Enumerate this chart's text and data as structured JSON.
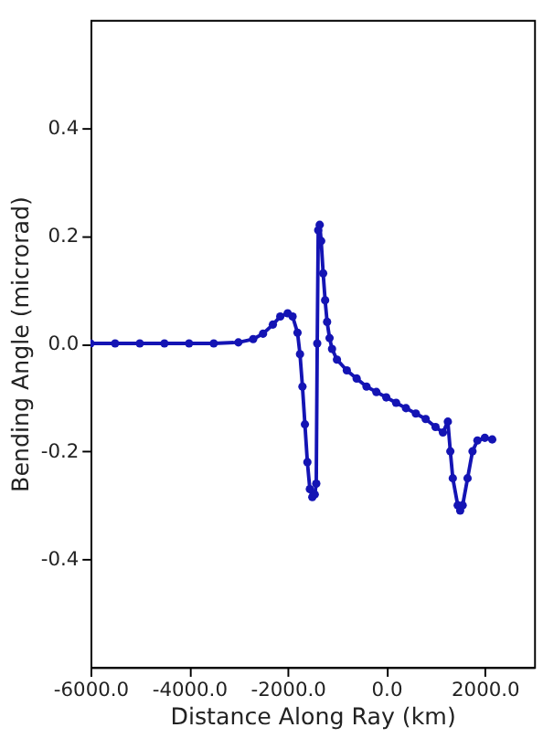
{
  "chart_data": {
    "type": "line",
    "xlabel": "Distance Along Ray (km)",
    "ylabel": "Bending Angle (microrad)",
    "xlim": [
      -6000,
      3000
    ],
    "ylim": [
      -0.6,
      0.6
    ],
    "xticks": [
      {
        "value": -6000,
        "label": "-6000.0"
      },
      {
        "value": -4000,
        "label": "-4000.0"
      },
      {
        "value": -2000,
        "label": "-2000.0"
      },
      {
        "value": 0,
        "label": "0.0"
      },
      {
        "value": 2000,
        "label": "2000.0"
      }
    ],
    "yticks": [
      {
        "value": -0.4,
        "label": "-0.4"
      },
      {
        "value": -0.2,
        "label": "-0.2"
      },
      {
        "value": 0,
        "label": "0.0"
      },
      {
        "value": 0.2,
        "label": "0.2"
      },
      {
        "value": 0.4,
        "label": "0.4"
      }
    ],
    "grid": false,
    "marker": "circle",
    "line_style": "solid",
    "series": [
      {
        "color": "#1414b4",
        "x": [
          -6000,
          -5500,
          -5000,
          -4500,
          -4000,
          -3500,
          -3000,
          -2700,
          -2500,
          -2300,
          -2150,
          -2000,
          -1900,
          -1800,
          -1750,
          -1700,
          -1650,
          -1600,
          -1550,
          -1500,
          -1450,
          -1420,
          -1400,
          -1380,
          -1350,
          -1320,
          -1280,
          -1240,
          -1200,
          -1150,
          -1100,
          -1000,
          -800,
          -600,
          -400,
          -200,
          0,
          200,
          400,
          600,
          800,
          1000,
          1150,
          1250,
          1300,
          1350,
          1450,
          1500,
          1550,
          1650,
          1750,
          1850,
          2000,
          2150
        ],
        "values": [
          0,
          0,
          0,
          0,
          0,
          0,
          0.002,
          0.008,
          0.018,
          0.035,
          0.05,
          0.056,
          0.05,
          0.02,
          -0.02,
          -0.08,
          -0.15,
          -0.22,
          -0.27,
          -0.285,
          -0.28,
          -0.26,
          0.0,
          0.21,
          0.22,
          0.19,
          0.13,
          0.08,
          0.04,
          0.01,
          -0.01,
          -0.03,
          -0.05,
          -0.065,
          -0.08,
          -0.09,
          -0.1,
          -0.11,
          -0.12,
          -0.13,
          -0.14,
          -0.155,
          -0.165,
          -0.145,
          -0.2,
          -0.25,
          -0.3,
          -0.31,
          -0.3,
          -0.25,
          -0.2,
          -0.18,
          -0.175,
          -0.178
        ]
      }
    ]
  }
}
